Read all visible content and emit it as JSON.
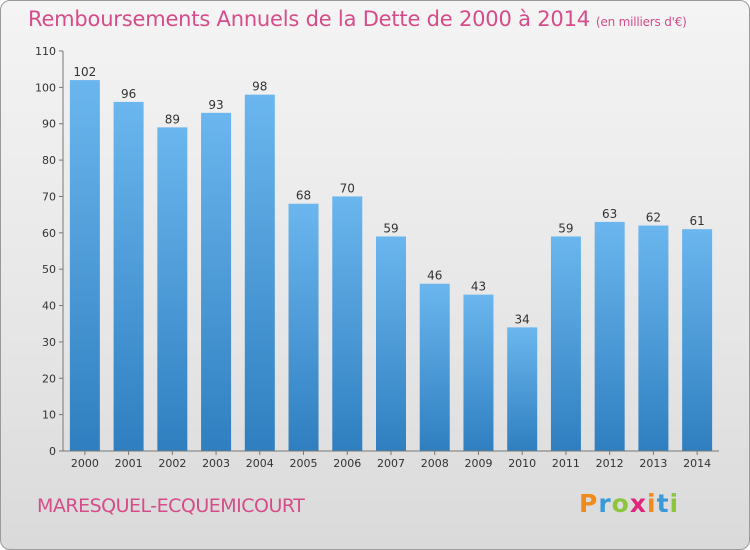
{
  "title": "Remboursements Annuels de la Dette de 2000 à 2014",
  "unit_note": "(en milliers d'€)",
  "commune": "MARESQUEL-ECQUEMICOURT",
  "logo": {
    "text": "Proxiti",
    "letter_colors": [
      "#f08a1c",
      "#3a9ad9",
      "#8cc63f",
      "#e0257a",
      "#f08a1c",
      "#3a9ad9",
      "#8cc63f"
    ]
  },
  "colors": {
    "bar_top": "#6bb6ee",
    "bar_bottom": "#2f7fc0",
    "text": "#d64c8a",
    "axis_text": "#333333"
  },
  "chart_data": {
    "type": "bar",
    "title": "Remboursements Annuels de la Dette de 2000 à 2014",
    "xlabel": "",
    "ylabel": "",
    "categories": [
      "2000",
      "2001",
      "2002",
      "2003",
      "2004",
      "2005",
      "2006",
      "2007",
      "2008",
      "2009",
      "2010",
      "2011",
      "2012",
      "2013",
      "2014"
    ],
    "values": [
      102,
      96,
      89,
      93,
      98,
      68,
      70,
      59,
      46,
      43,
      34,
      59,
      63,
      62,
      61
    ],
    "ylim": [
      0,
      110
    ],
    "yticks": [
      0,
      10,
      20,
      30,
      40,
      50,
      60,
      70,
      80,
      90,
      100,
      110
    ],
    "grid": false,
    "data_labels": true
  }
}
